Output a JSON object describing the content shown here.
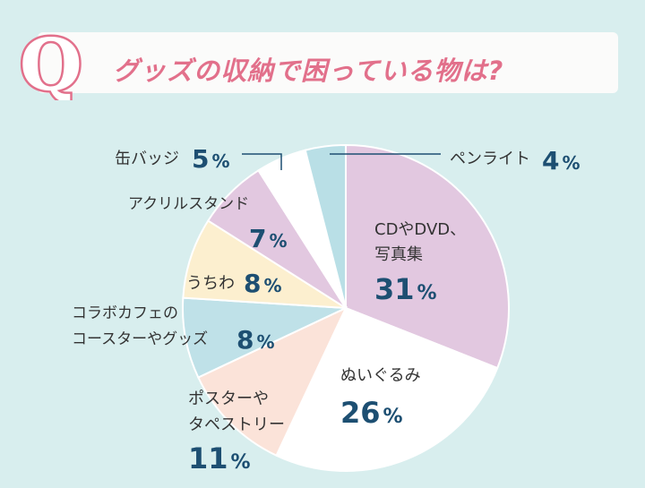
{
  "title": "グッズの収納で困っている物は?",
  "q_letter": "Q",
  "chart_data": {
    "type": "pie",
    "title": "グッズの収納で困っている物は?",
    "unit": "%",
    "slices": [
      {
        "label": "CDやDVD、写真集",
        "lines": [
          "CDやDVD、",
          "写真集"
        ],
        "value": 31,
        "color": "#e2c8e0"
      },
      {
        "label": "ぬいぐるみ",
        "lines": [
          "ぬいぐるみ"
        ],
        "value": 26,
        "color": "#ffffff"
      },
      {
        "label": "ポスターやタペストリー",
        "lines": [
          "ポスターや",
          "タペストリー"
        ],
        "value": 11,
        "color": "#fbe3d9"
      },
      {
        "label": "コラボカフェのコースターやグッズ",
        "lines": [
          "コラボカフェの",
          "コースターやグッズ"
        ],
        "value": 8,
        "color": "#bfe1e8"
      },
      {
        "label": "うちわ",
        "lines": [
          "うちわ"
        ],
        "value": 8,
        "color": "#fcefcf"
      },
      {
        "label": "アクリルスタンド",
        "lines": [
          "アクリルスタンド"
        ],
        "value": 7,
        "color": "#e2c8e0"
      },
      {
        "label": "缶バッジ",
        "lines": [
          "缶バッジ"
        ],
        "value": 5,
        "color": "#ffffff"
      },
      {
        "label": "ペンライト",
        "lines": [
          "ペンライト"
        ],
        "value": 4,
        "color": "#b9dfe6"
      }
    ]
  },
  "colors": {
    "background": "#d8eeee",
    "title_pink": "#e2708b",
    "percent_navy": "#1d4f72",
    "leader_line": "#1d4f72"
  }
}
